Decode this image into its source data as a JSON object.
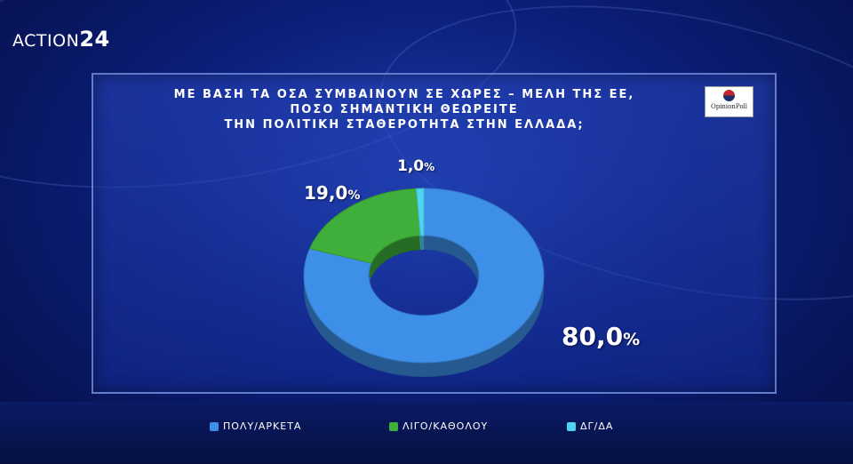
{
  "brand": {
    "name": "ACTION",
    "number": "24"
  },
  "pollster": {
    "name": "OpinionPoll"
  },
  "chart_data": {
    "type": "pie",
    "title_lines": [
      "ΜΕ ΒΑΣΗ ΤΑ ΟΣΑ ΣΥΜΒΑΙΝΟΥΝ ΣΕ ΧΩΡΕΣ – ΜΕΛΗ ΤΗΣ ΕΕ,",
      "ΠΟΣΟ ΣΗΜΑΝΤΙΚΗ ΘΕΩΡΕΙΤΕ",
      "ΤΗΝ ΠΟΛΙΤΙΚΗ ΣΤΑΘΕΡΟΤΗΤΑ ΣΤΗΝ ΕΛΛΑΔΑ;"
    ],
    "categories": [
      "ΠΟΛΥ/ΑΡΚΕΤΑ",
      "ΛΙΓΟ/ΚΑΘΟΛΟΥ",
      "ΔΓ/ΔΑ"
    ],
    "values": [
      80.0,
      19.0,
      1.0
    ],
    "value_labels": [
      "80,0",
      "19,0",
      "1,0"
    ],
    "unit": "%",
    "colors": [
      "#3d8fe8",
      "#3fae3a",
      "#4fd4f0"
    ],
    "legend_position": "bottom"
  }
}
